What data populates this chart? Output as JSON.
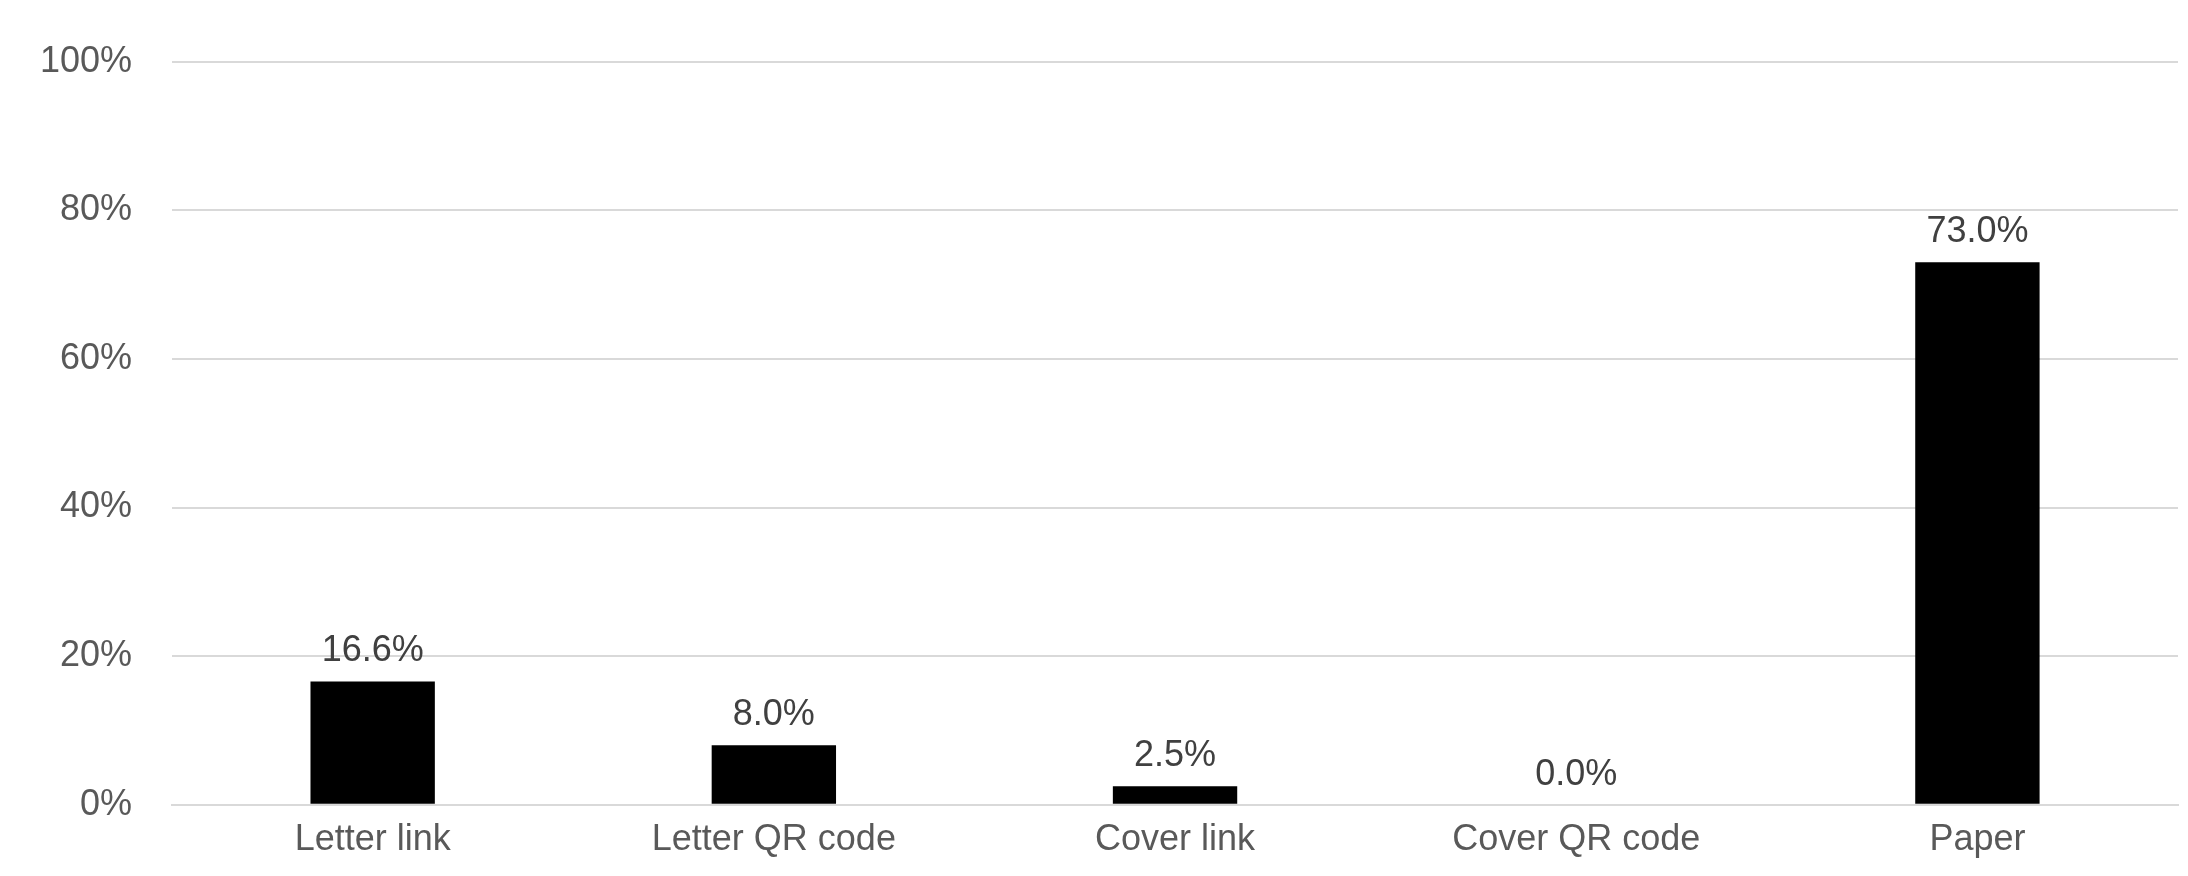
{
  "chart_data": {
    "type": "bar",
    "categories": [
      "Letter link",
      "Letter QR code",
      "Cover link",
      "Cover QR code",
      "Paper"
    ],
    "values": [
      16.6,
      8.0,
      2.5,
      0.0,
      73.0
    ],
    "value_labels": [
      "16.6%",
      "8.0%",
      "2.5%",
      "0.0%",
      "73.0%"
    ],
    "color": "#000000",
    "ylim": [
      0,
      100
    ],
    "yticks": [
      {
        "value": 0,
        "label": "0%"
      },
      {
        "value": 20,
        "label": "20%"
      },
      {
        "value": 40,
        "label": "40%"
      },
      {
        "value": 60,
        "label": "60%"
      },
      {
        "value": 80,
        "label": "80%"
      },
      {
        "value": 100,
        "label": "100%"
      }
    ],
    "grid": "y",
    "legend": false
  }
}
